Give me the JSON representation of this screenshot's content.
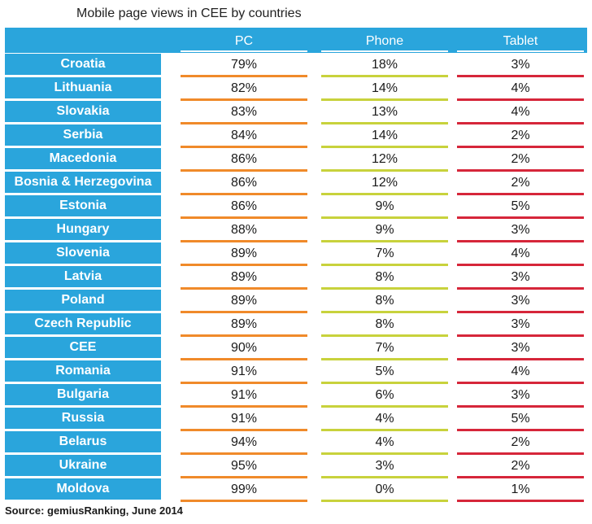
{
  "title": "Mobile page views in CEE by countries",
  "source": "Source: gemiusRanking, June 2014",
  "colors": {
    "header": "#2aa5dc",
    "pc": "#f08a2a",
    "phone": "#c8d23c",
    "tablet": "#d6263a"
  },
  "chart_data": {
    "type": "table",
    "title": "Mobile page views in CEE by countries",
    "columns": [
      "PC",
      "Phone",
      "Tablet"
    ],
    "rows": [
      {
        "country": "Croatia",
        "values": [
          "79%",
          "18%",
          "3%"
        ]
      },
      {
        "country": "Lithuania",
        "values": [
          "82%",
          "14%",
          "4%"
        ]
      },
      {
        "country": "Slovakia",
        "values": [
          "83%",
          "13%",
          "4%"
        ]
      },
      {
        "country": "Serbia",
        "values": [
          "84%",
          "14%",
          "2%"
        ]
      },
      {
        "country": "Macedonia",
        "values": [
          "86%",
          "12%",
          "2%"
        ]
      },
      {
        "country": "Bosnia & Herzegovina",
        "values": [
          "86%",
          "12%",
          "2%"
        ]
      },
      {
        "country": "Estonia",
        "values": [
          "86%",
          "9%",
          "5%"
        ]
      },
      {
        "country": "Hungary",
        "values": [
          "88%",
          "9%",
          "3%"
        ]
      },
      {
        "country": "Slovenia",
        "values": [
          "89%",
          "7%",
          "4%"
        ]
      },
      {
        "country": "Latvia",
        "values": [
          "89%",
          "8%",
          "3%"
        ]
      },
      {
        "country": "Poland",
        "values": [
          "89%",
          "8%",
          "3%"
        ]
      },
      {
        "country": "Czech Republic",
        "values": [
          "89%",
          "8%",
          "3%"
        ]
      },
      {
        "country": "CEE",
        "values": [
          "90%",
          "7%",
          "3%"
        ]
      },
      {
        "country": "Romania",
        "values": [
          "91%",
          "5%",
          "4%"
        ]
      },
      {
        "country": "Bulgaria",
        "values": [
          "91%",
          "6%",
          "3%"
        ]
      },
      {
        "country": "Russia",
        "values": [
          "91%",
          "4%",
          "5%"
        ]
      },
      {
        "country": "Belarus",
        "values": [
          "94%",
          "4%",
          "2%"
        ]
      },
      {
        "country": "Ukraine",
        "values": [
          "95%",
          "3%",
          "2%"
        ]
      },
      {
        "country": "Moldova",
        "values": [
          "99%",
          "0%",
          "1%"
        ]
      }
    ]
  }
}
